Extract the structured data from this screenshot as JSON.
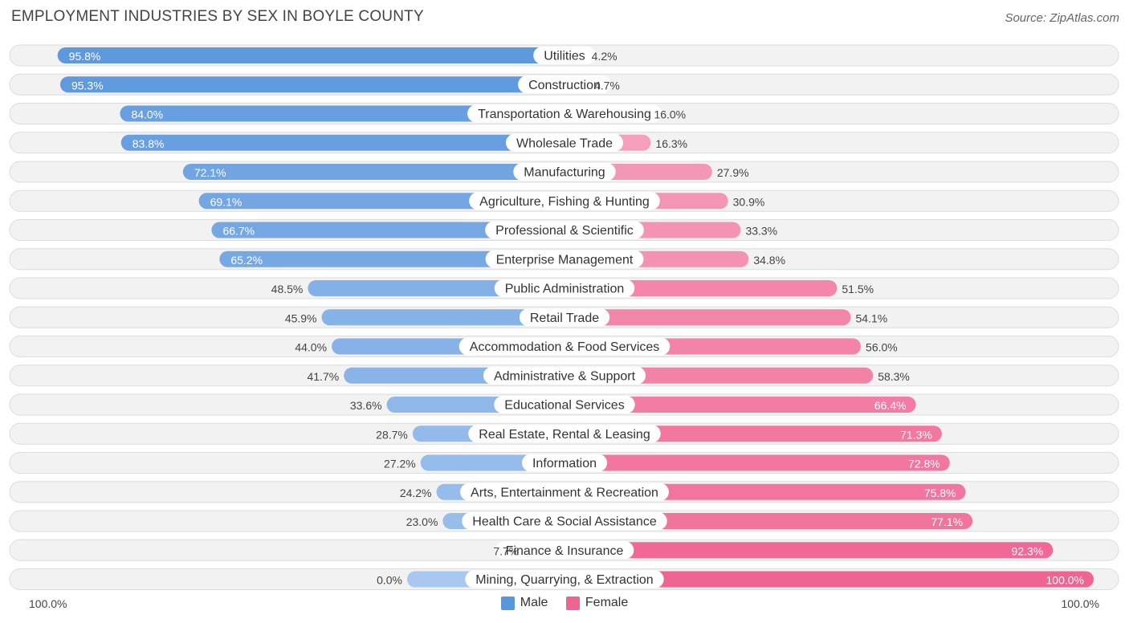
{
  "title": "EMPLOYMENT INDUSTRIES BY SEX IN BOYLE COUNTY",
  "source": "Source: ZipAtlas.com",
  "colors": {
    "male_dark": "#5b97dd",
    "male_light": "#a9c8ef",
    "female_dark": "#f06492",
    "female_light": "#f6abc4",
    "row_bg": "#f2f2f2"
  },
  "legend": {
    "male": "Male",
    "female": "Female"
  },
  "axis": {
    "left_label": "100.0%",
    "right_label": "100.0%"
  },
  "chart_data": {
    "type": "bar",
    "orientation": "horizontal-diverging",
    "title": "EMPLOYMENT INDUSTRIES BY SEX IN BOYLE COUNTY",
    "xlim": [
      0,
      100
    ],
    "unit": "%",
    "categories": [
      "Utilities",
      "Construction",
      "Transportation & Warehousing",
      "Wholesale Trade",
      "Manufacturing",
      "Agriculture, Fishing & Hunting",
      "Professional & Scientific",
      "Enterprise Management",
      "Public Administration",
      "Retail Trade",
      "Accommodation & Food Services",
      "Administrative & Support",
      "Educational Services",
      "Real Estate, Rental & Leasing",
      "Information",
      "Arts, Entertainment & Recreation",
      "Health Care & Social Assistance",
      "Finance & Insurance",
      "Mining, Quarrying, & Extraction"
    ],
    "series": [
      {
        "name": "Male",
        "values": [
          95.8,
          95.3,
          84.0,
          83.8,
          72.1,
          69.1,
          66.7,
          65.2,
          48.5,
          45.9,
          44.0,
          41.7,
          33.6,
          28.7,
          27.2,
          24.2,
          23.0,
          7.7,
          0.0
        ],
        "labels": [
          "95.8%",
          "95.3%",
          "84.0%",
          "83.8%",
          "72.1%",
          "69.1%",
          "66.7%",
          "65.2%",
          "48.5%",
          "45.9%",
          "44.0%",
          "41.7%",
          "33.6%",
          "28.7%",
          "27.2%",
          "24.2%",
          "23.0%",
          "7.7%",
          "0.0%"
        ]
      },
      {
        "name": "Female",
        "values": [
          4.2,
          4.7,
          16.0,
          16.3,
          27.9,
          30.9,
          33.3,
          34.8,
          51.5,
          54.1,
          56.0,
          58.3,
          66.4,
          71.3,
          72.8,
          75.8,
          77.1,
          92.3,
          100.0
        ],
        "labels": [
          "4.2%",
          "4.7%",
          "16.0%",
          "16.3%",
          "27.9%",
          "30.9%",
          "33.3%",
          "34.8%",
          "51.5%",
          "54.1%",
          "56.0%",
          "58.3%",
          "66.4%",
          "71.3%",
          "72.8%",
          "75.8%",
          "77.1%",
          "92.3%",
          "100.0%"
        ]
      }
    ]
  }
}
